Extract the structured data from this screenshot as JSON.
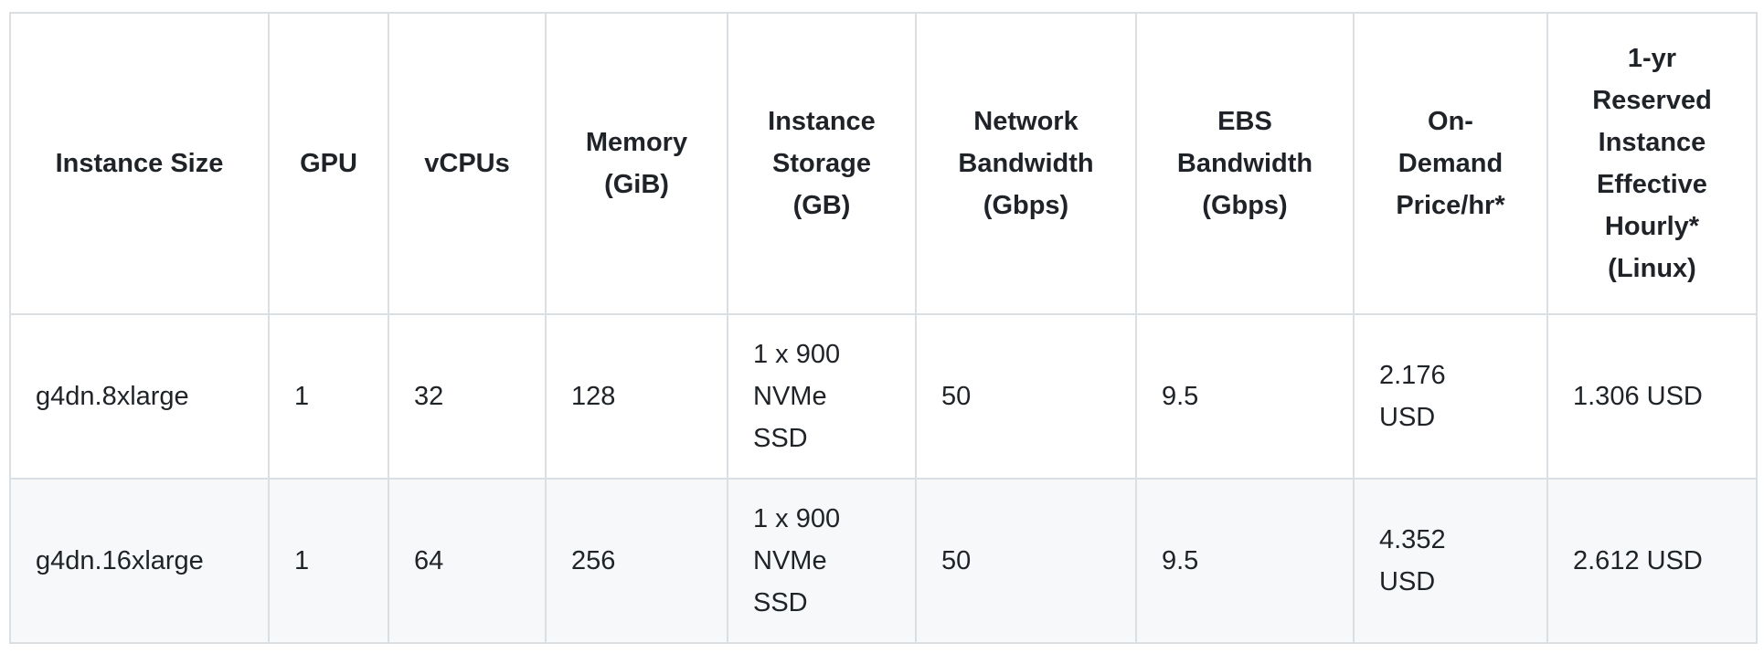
{
  "colors": {
    "text": "#1f2328",
    "border_inner": "#dadfe3",
    "border_outer": "#c9cfd6",
    "row_alt_bg": "#f6f8fa",
    "row_bg": "#ffffff"
  },
  "table": {
    "headers": [
      {
        "id": "instance_size",
        "lines": [
          "Instance Size"
        ]
      },
      {
        "id": "gpu",
        "lines": [
          "GPU"
        ]
      },
      {
        "id": "vcpus",
        "lines": [
          "vCPUs"
        ]
      },
      {
        "id": "memory",
        "lines": [
          "Memory",
          "(GiB)"
        ]
      },
      {
        "id": "instance_storage",
        "lines": [
          "Instance",
          "Storage",
          "(GB)"
        ]
      },
      {
        "id": "network_bandwidth",
        "lines": [
          "Network",
          "Bandwidth",
          "(Gbps)"
        ]
      },
      {
        "id": "ebs_bandwidth",
        "lines": [
          "EBS",
          "Bandwidth",
          "(Gbps)"
        ]
      },
      {
        "id": "on_demand_price",
        "lines": [
          "On-",
          "Demand",
          "Price/hr*"
        ]
      },
      {
        "id": "reserved_price",
        "lines": [
          "1-yr",
          "Reserved",
          "Instance",
          "Effective",
          "Hourly*",
          "(Linux)"
        ]
      }
    ],
    "rows": [
      {
        "instance_size": {
          "lines": [
            "g4dn.8xlarge"
          ]
        },
        "gpu": {
          "lines": [
            "1"
          ]
        },
        "vcpus": {
          "lines": [
            "32"
          ]
        },
        "memory": {
          "lines": [
            "128"
          ]
        },
        "instance_storage": {
          "lines": [
            "1 x 900",
            "NVMe",
            "SSD"
          ]
        },
        "network_bandwidth": {
          "lines": [
            "50"
          ]
        },
        "ebs_bandwidth": {
          "lines": [
            "9.5"
          ]
        },
        "on_demand_price": {
          "lines": [
            "2.176",
            "USD"
          ]
        },
        "reserved_price": {
          "lines": [
            "1.306 USD"
          ]
        }
      },
      {
        "instance_size": {
          "lines": [
            "g4dn.16xlarge"
          ]
        },
        "gpu": {
          "lines": [
            "1"
          ]
        },
        "vcpus": {
          "lines": [
            "64"
          ]
        },
        "memory": {
          "lines": [
            "256"
          ]
        },
        "instance_storage": {
          "lines": [
            "1 x 900",
            "NVMe",
            "SSD"
          ]
        },
        "network_bandwidth": {
          "lines": [
            "50"
          ]
        },
        "ebs_bandwidth": {
          "lines": [
            "9.5"
          ]
        },
        "on_demand_price": {
          "lines": [
            "4.352",
            "USD"
          ]
        },
        "reserved_price": {
          "lines": [
            "2.612 USD"
          ]
        }
      }
    ]
  }
}
